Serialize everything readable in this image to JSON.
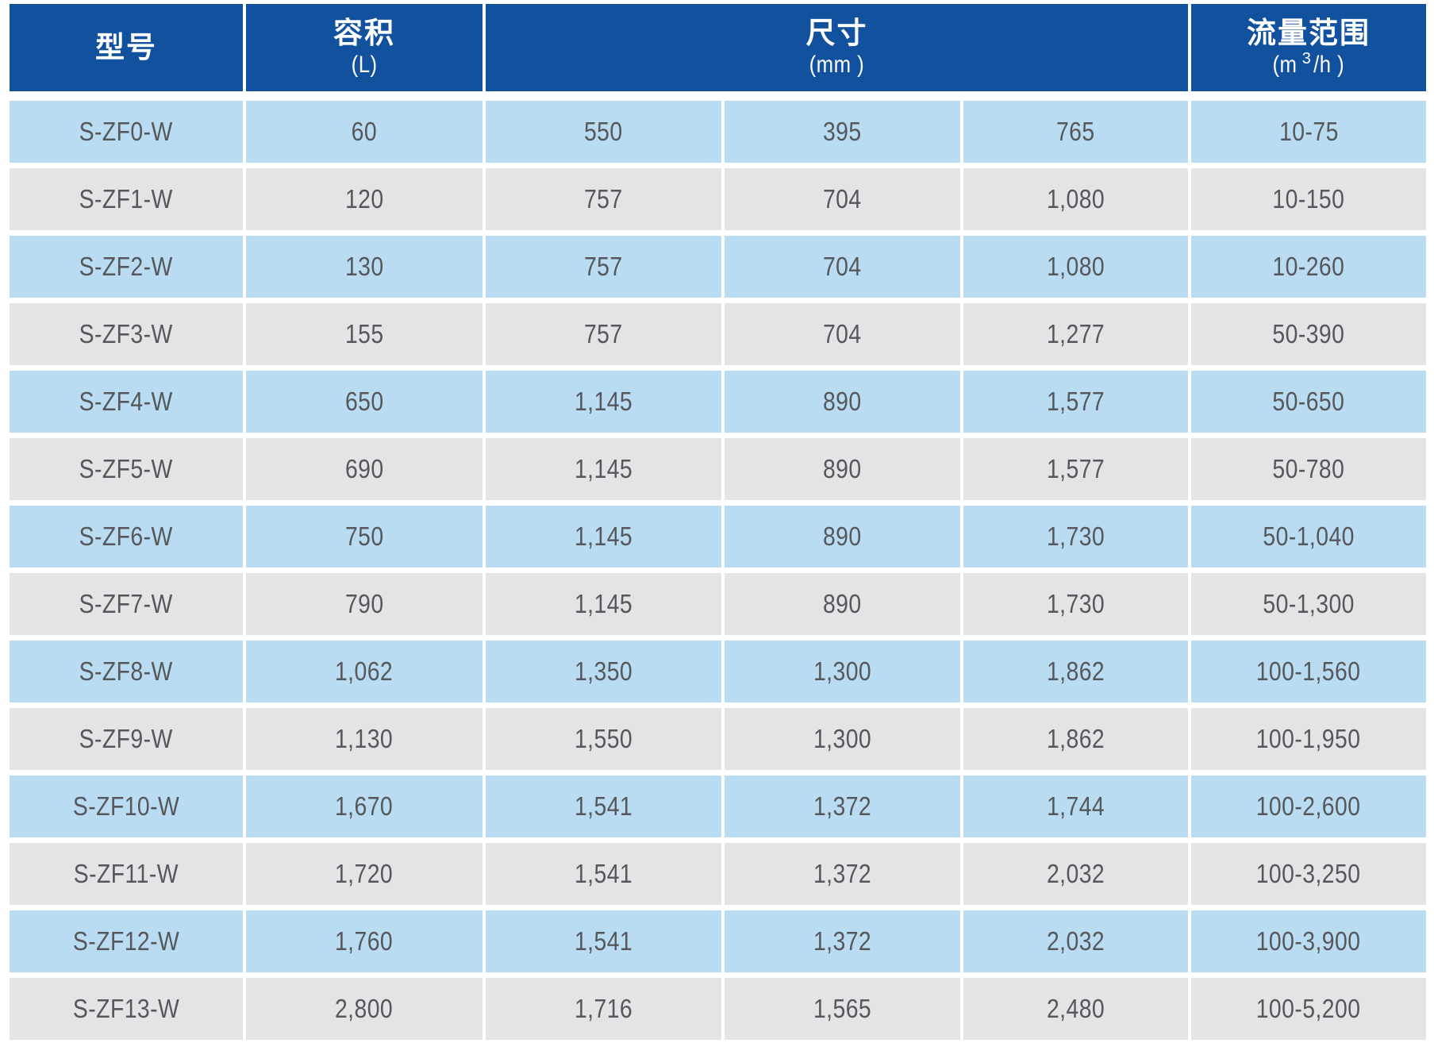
{
  "colors": {
    "header_bg": "#11519E",
    "header_text": "#FFFFFF",
    "row_blue": "#BADCF2",
    "row_gray": "#E3E4E5",
    "cell_text": "#55575A"
  },
  "table": {
    "header": {
      "model": {
        "title": "型号"
      },
      "volume": {
        "title": "容积",
        "unit": "(L)"
      },
      "dimensions": {
        "title": "尺寸",
        "unit": "(mm )"
      },
      "flow": {
        "title": "流量范围",
        "unit_pre": "(m",
        "unit_sup": "3",
        "unit_post": "/h )"
      }
    },
    "rows": [
      {
        "model": "S-ZF0-W",
        "volume": "60",
        "dim_l": "550",
        "dim_w": "395",
        "dim_h": "765",
        "flow": "10-75"
      },
      {
        "model": "S-ZF1-W",
        "volume": "120",
        "dim_l": "757",
        "dim_w": "704",
        "dim_h": "1,080",
        "flow": "10-150"
      },
      {
        "model": "S-ZF2-W",
        "volume": "130",
        "dim_l": "757",
        "dim_w": "704",
        "dim_h": "1,080",
        "flow": "10-260"
      },
      {
        "model": "S-ZF3-W",
        "volume": "155",
        "dim_l": "757",
        "dim_w": "704",
        "dim_h": "1,277",
        "flow": "50-390"
      },
      {
        "model": "S-ZF4-W",
        "volume": "650",
        "dim_l": "1,145",
        "dim_w": "890",
        "dim_h": "1,577",
        "flow": "50-650"
      },
      {
        "model": "S-ZF5-W",
        "volume": "690",
        "dim_l": "1,145",
        "dim_w": "890",
        "dim_h": "1,577",
        "flow": "50-780"
      },
      {
        "model": "S-ZF6-W",
        "volume": "750",
        "dim_l": "1,145",
        "dim_w": "890",
        "dim_h": "1,730",
        "flow": "50-1,040"
      },
      {
        "model": "S-ZF7-W",
        "volume": "790",
        "dim_l": "1,145",
        "dim_w": "890",
        "dim_h": "1,730",
        "flow": "50-1,300"
      },
      {
        "model": "S-ZF8-W",
        "volume": "1,062",
        "dim_l": "1,350",
        "dim_w": "1,300",
        "dim_h": "1,862",
        "flow": "100-1,560"
      },
      {
        "model": "S-ZF9-W",
        "volume": "1,130",
        "dim_l": "1,550",
        "dim_w": "1,300",
        "dim_h": "1,862",
        "flow": "100-1,950"
      },
      {
        "model": "S-ZF10-W",
        "volume": "1,670",
        "dim_l": "1,541",
        "dim_w": "1,372",
        "dim_h": "1,744",
        "flow": "100-2,600"
      },
      {
        "model": "S-ZF11-W",
        "volume": "1,720",
        "dim_l": "1,541",
        "dim_w": "1,372",
        "dim_h": "2,032",
        "flow": "100-3,250"
      },
      {
        "model": "S-ZF12-W",
        "volume": "1,760",
        "dim_l": "1,541",
        "dim_w": "1,372",
        "dim_h": "2,032",
        "flow": "100-3,900"
      },
      {
        "model": "S-ZF13-W",
        "volume": "2,800",
        "dim_l": "1,716",
        "dim_w": "1,565",
        "dim_h": "2,480",
        "flow": "100-5,200"
      }
    ]
  }
}
